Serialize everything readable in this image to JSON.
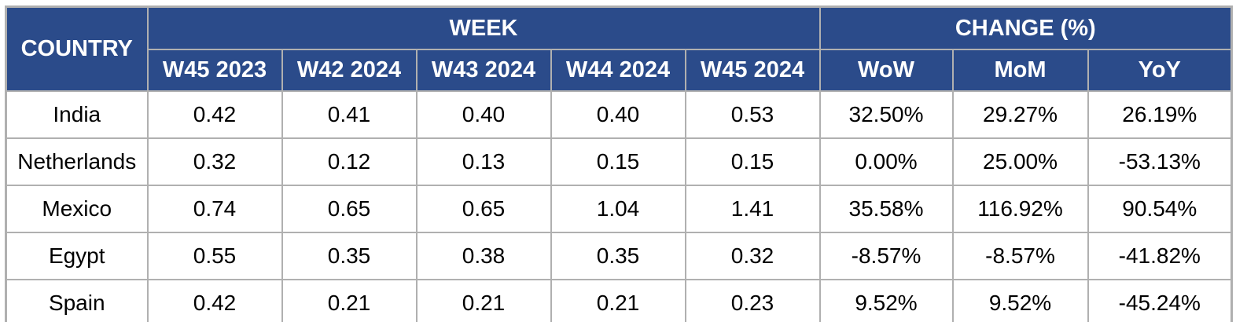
{
  "table": {
    "header": {
      "country_label": "COUNTRY",
      "week_group_label": "WEEK",
      "change_group_label": "CHANGE (%)",
      "week_columns": [
        "W45 2023",
        "W42 2024",
        "W43 2024",
        "W44 2024",
        "W45 2024"
      ],
      "change_columns": [
        "WoW",
        "MoM",
        "YoY"
      ]
    },
    "rows": [
      {
        "country": "India",
        "weeks": [
          "0.42",
          "0.41",
          "0.40",
          "0.40",
          "0.53"
        ],
        "changes": [
          "32.50%",
          "29.27%",
          "26.19%"
        ]
      },
      {
        "country": "Netherlands",
        "weeks": [
          "0.32",
          "0.12",
          "0.13",
          "0.15",
          "0.15"
        ],
        "changes": [
          "0.00%",
          "25.00%",
          "-53.13%"
        ]
      },
      {
        "country": "Mexico",
        "weeks": [
          "0.74",
          "0.65",
          "0.65",
          "1.04",
          "1.41"
        ],
        "changes": [
          "35.58%",
          "116.92%",
          "90.54%"
        ]
      },
      {
        "country": "Egypt",
        "weeks": [
          "0.55",
          "0.35",
          "0.38",
          "0.35",
          "0.32"
        ],
        "changes": [
          "-8.57%",
          "-8.57%",
          "-41.82%"
        ]
      },
      {
        "country": "Spain",
        "weeks": [
          "0.42",
          "0.21",
          "0.21",
          "0.21",
          "0.23"
        ],
        "changes": [
          "9.52%",
          "9.52%",
          "-45.24%"
        ]
      }
    ],
    "colors": {
      "header_bg": "#2B4B8A",
      "header_text": "#FFFFFF",
      "grid_line": "#B0B0B0",
      "body_bg": "#FFFFFF",
      "body_text": "#000000"
    }
  },
  "chart_data": {
    "type": "table",
    "title": "",
    "column_groups": [
      {
        "label": "COUNTRY",
        "span": 1
      },
      {
        "label": "WEEK",
        "span": 5
      },
      {
        "label": "CHANGE (%)",
        "span": 3
      }
    ],
    "columns": [
      "COUNTRY",
      "W45 2023",
      "W42 2024",
      "W43 2024",
      "W44 2024",
      "W45 2024",
      "WoW",
      "MoM",
      "YoY"
    ],
    "rows": [
      [
        "India",
        0.42,
        0.41,
        0.4,
        0.4,
        0.53,
        "32.50%",
        "29.27%",
        "26.19%"
      ],
      [
        "Netherlands",
        0.32,
        0.12,
        0.13,
        0.15,
        0.15,
        "0.00%",
        "25.00%",
        "-53.13%"
      ],
      [
        "Mexico",
        0.74,
        0.65,
        0.65,
        1.04,
        1.41,
        "35.58%",
        "116.92%",
        "90.54%"
      ],
      [
        "Egypt",
        0.55,
        0.35,
        0.38,
        0.35,
        0.32,
        "-8.57%",
        "-8.57%",
        "-41.82%"
      ],
      [
        "Spain",
        0.42,
        0.21,
        0.21,
        0.21,
        0.23,
        "9.52%",
        "9.52%",
        "-45.24%"
      ]
    ],
    "grid": true,
    "legend": "none"
  }
}
